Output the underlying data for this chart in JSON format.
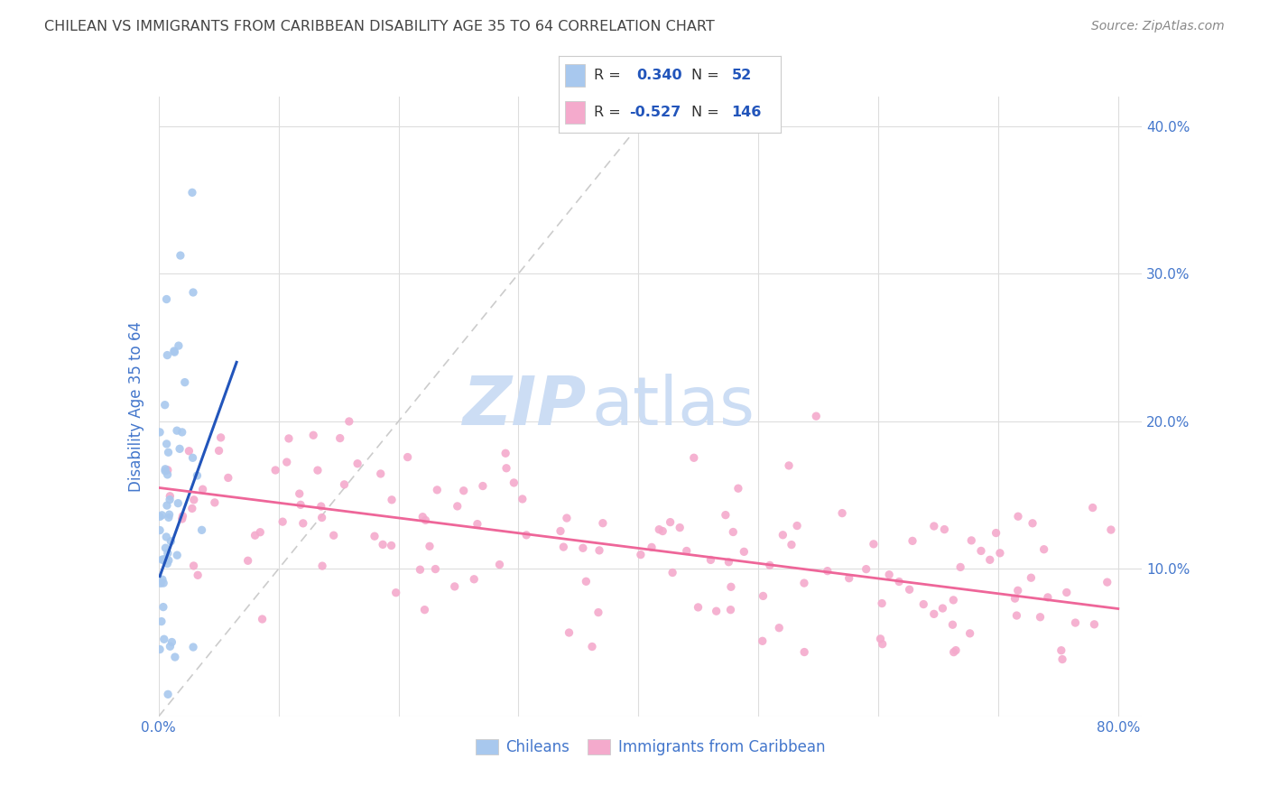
{
  "title": "CHILEAN VS IMMIGRANTS FROM CARIBBEAN DISABILITY AGE 35 TO 64 CORRELATION CHART",
  "source": "Source: ZipAtlas.com",
  "ylabel": "Disability Age 35 to 64",
  "xlim": [
    0.0,
    0.82
  ],
  "ylim": [
    0.0,
    0.42
  ],
  "chilean_R": 0.34,
  "chilean_N": 52,
  "caribbean_R": -0.527,
  "caribbean_N": 146,
  "chilean_color": "#A8C8EE",
  "caribbean_color": "#F4AACC",
  "chilean_line_color": "#2255BB",
  "caribbean_line_color": "#EE6699",
  "diagonal_color": "#CCCCCC",
  "background_color": "#FFFFFF",
  "grid_color": "#DDDDDD",
  "watermark_zip": "ZIP",
  "watermark_atlas": "atlas",
  "watermark_color": "#CCDDF4",
  "title_color": "#444444",
  "axis_label_color": "#4477CC",
  "source_color": "#888888",
  "legend_border_color": "#CCCCCC",
  "chilean_line_x": [
    0.001,
    0.065
  ],
  "chilean_line_y": [
    0.095,
    0.24
  ],
  "caribbean_line_x": [
    0.0,
    0.8
  ],
  "caribbean_line_y": [
    0.155,
    0.073
  ]
}
